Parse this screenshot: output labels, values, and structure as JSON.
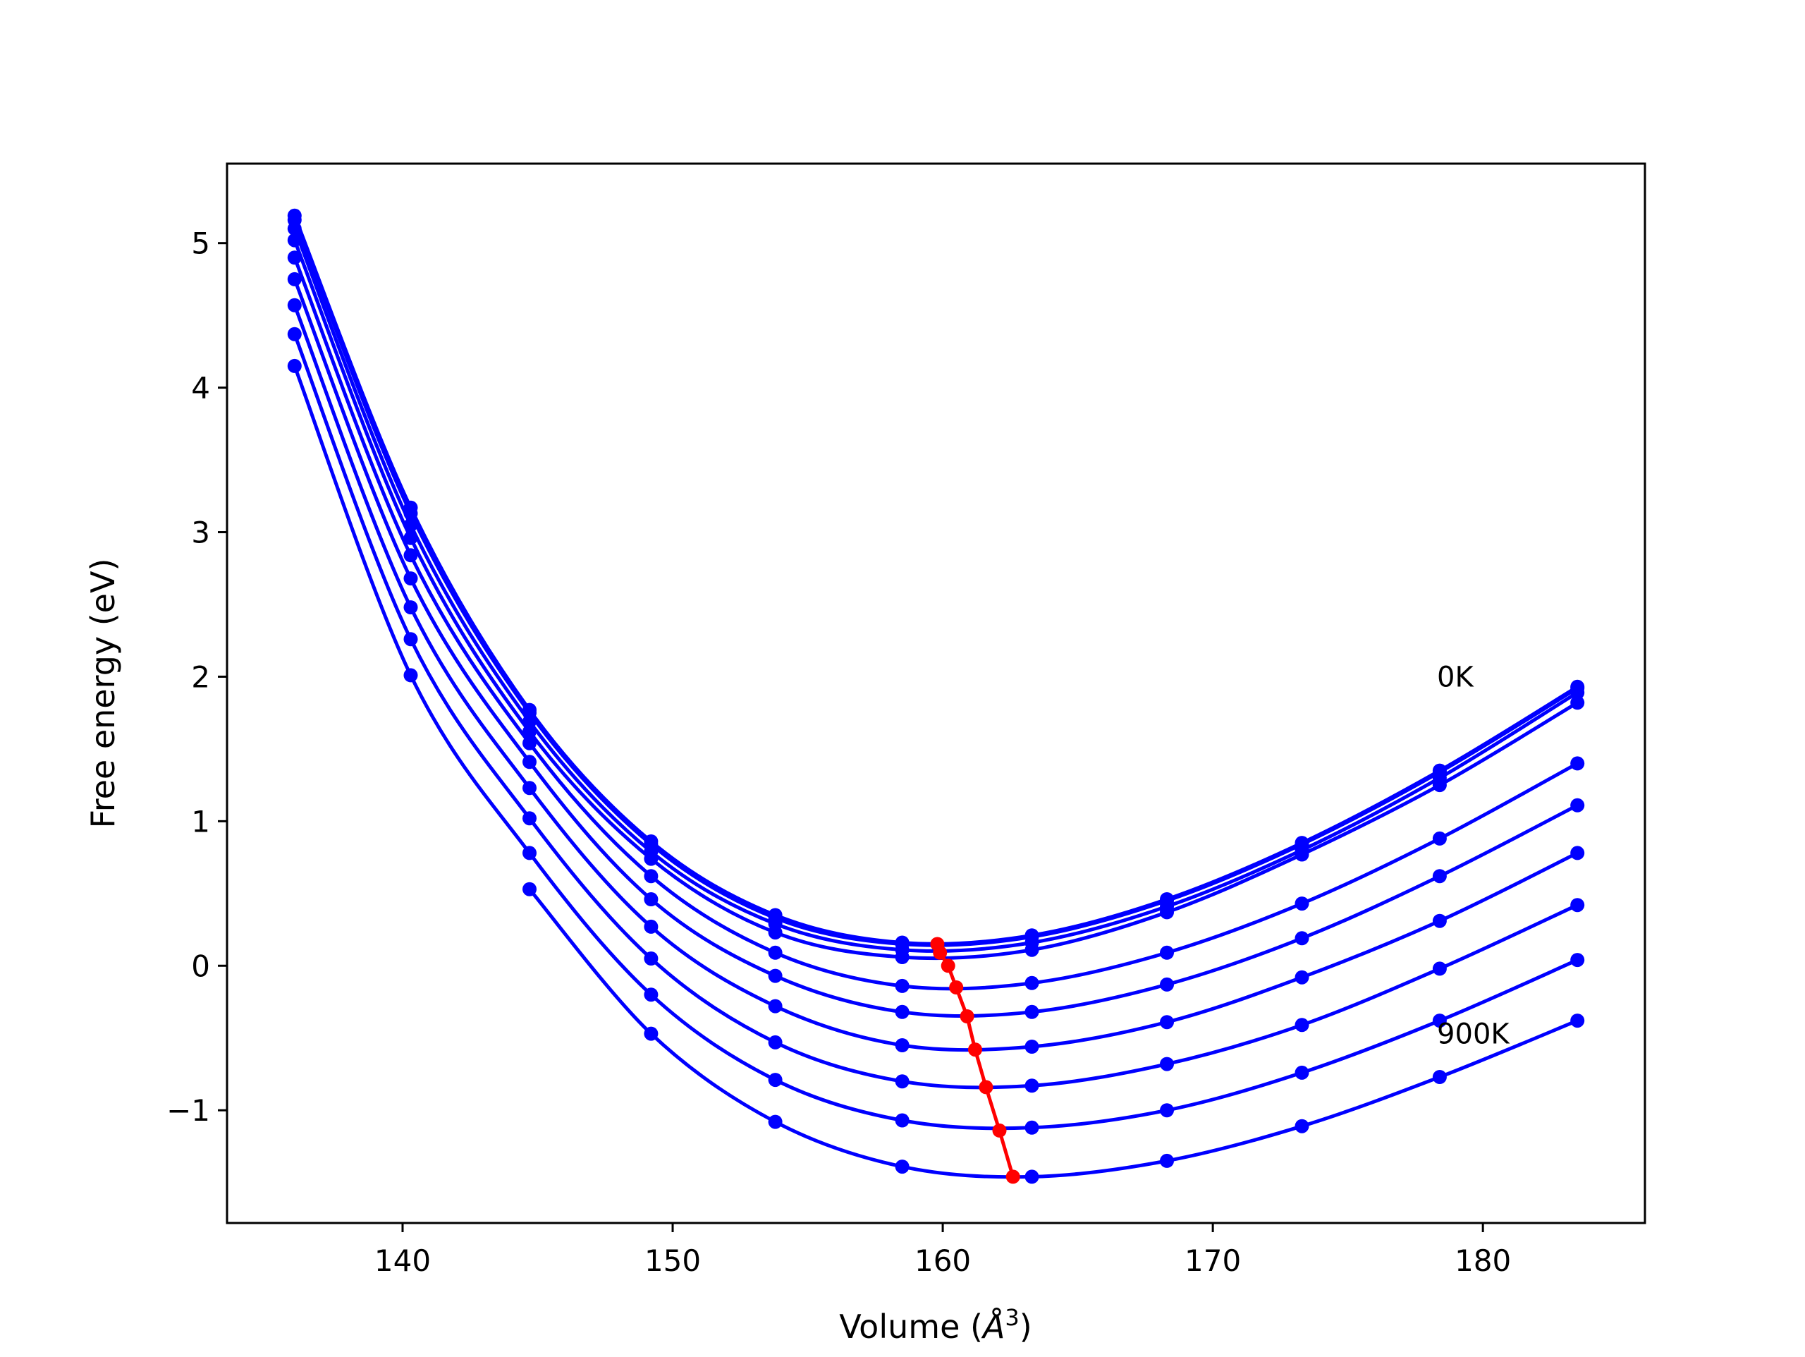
{
  "chart_data": {
    "type": "line",
    "title": "",
    "xlabel": "Volume (",
    "xlabel_symbol": "Å",
    "xlabel_exponent": "3",
    "xlabel_close": ")",
    "ylabel": "Free energy (eV)",
    "xlim": [
      133.5,
      186
    ],
    "ylim": [
      -1.78,
      5.55
    ],
    "x_ticks": [
      140,
      150,
      160,
      170,
      180
    ],
    "x_tick_labels": [
      "140",
      "150",
      "160",
      "170",
      "180"
    ],
    "y_ticks": [
      -1,
      0,
      1,
      2,
      3,
      4,
      5
    ],
    "y_tick_labels": [
      "−1",
      "0",
      "1",
      "2",
      "3",
      "4",
      "5"
    ],
    "grid": false,
    "legend": "none",
    "annotations": [
      {
        "text": "0K",
        "x": 178.3,
        "y": 2.0
      },
      {
        "text": "900K",
        "x": 178.3,
        "y": -0.47
      }
    ],
    "x": [
      136.0,
      140.3,
      144.7,
      149.2,
      153.8,
      158.5,
      163.3,
      168.3,
      173.3,
      178.4,
      183.5
    ],
    "series": [
      {
        "values": [
          5.19,
          3.17,
          1.77,
          0.86,
          0.35,
          0.16,
          0.21,
          0.46,
          0.85,
          1.35,
          1.93
        ]
      },
      {
        "values": [
          5.16,
          3.13,
          1.75,
          0.84,
          0.33,
          0.15,
          0.2,
          0.45,
          0.84,
          1.34,
          1.92
        ]
      },
      {
        "values": [
          5.1,
          3.05,
          1.69,
          0.79,
          0.29,
          0.11,
          0.16,
          0.41,
          0.8,
          1.3,
          1.89
        ]
      },
      {
        "values": [
          5.02,
          2.96,
          1.62,
          0.74,
          0.23,
          0.06,
          0.11,
          0.37,
          0.77,
          1.25,
          1.82
        ]
      },
      {
        "values": [
          4.9,
          2.84,
          1.54,
          0.62,
          0.09,
          -0.14,
          -0.12,
          0.09,
          0.43,
          0.88,
          1.4
        ]
      },
      {
        "values": [
          4.75,
          2.68,
          1.41,
          0.46,
          -0.07,
          -0.32,
          -0.32,
          -0.13,
          0.19,
          0.62,
          1.11
        ]
      },
      {
        "values": [
          4.57,
          2.48,
          1.23,
          0.27,
          -0.28,
          -0.55,
          -0.56,
          -0.39,
          -0.08,
          0.31,
          0.78
        ]
      },
      {
        "values": [
          4.37,
          2.26,
          1.02,
          0.05,
          -0.53,
          -0.8,
          -0.83,
          -0.68,
          -0.41,
          -0.02,
          0.42
        ]
      },
      {
        "values": [
          4.15,
          2.01,
          0.78,
          -0.2,
          -0.79,
          -1.07,
          -1.12,
          -1.0,
          -0.74,
          -0.38,
          0.04
        ]
      },
      {
        "values": [
          null,
          null,
          0.53,
          -0.47,
          -1.08,
          -1.39,
          -1.46,
          -1.35,
          -1.11,
          -0.77,
          -0.38
        ]
      }
    ],
    "minima_series": {
      "x": [
        159.8,
        159.9,
        160.2,
        160.5,
        160.9,
        161.2,
        161.6,
        162.1,
        162.6
      ],
      "y": [
        0.15,
        0.09,
        0.0,
        -0.15,
        -0.35,
        -0.58,
        -0.84,
        -1.14,
        -1.46
      ]
    },
    "curve_color": "#0000ff",
    "minima_color": "#ff0000"
  }
}
